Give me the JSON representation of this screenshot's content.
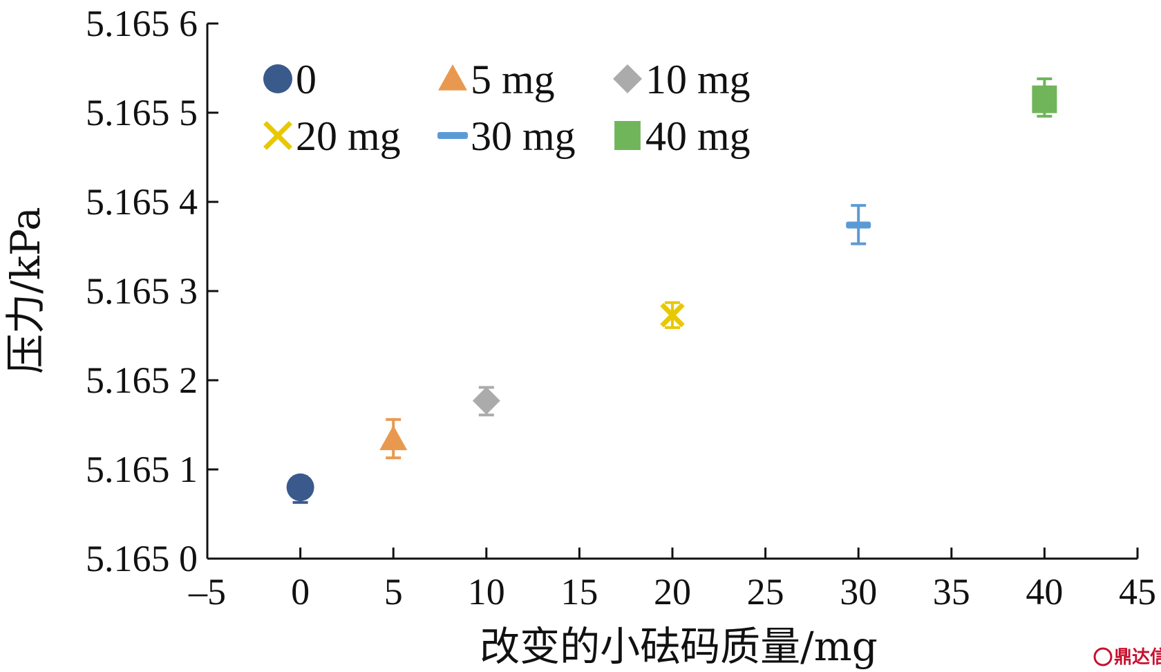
{
  "chart_data": {
    "type": "scatter",
    "xlabel": "改变的小砝码质量/mg",
    "ylabel": "压力/kPa",
    "xlim": [
      -5,
      45
    ],
    "ylim": [
      5.165,
      5.1656
    ],
    "x_ticks": [
      -5,
      0,
      5,
      10,
      15,
      20,
      25,
      30,
      35,
      40,
      45
    ],
    "x_tick_labels": [
      "–5",
      "0",
      "5",
      "10",
      "15",
      "20",
      "25",
      "30",
      "35",
      "40",
      "45"
    ],
    "y_ticks": [
      5.165,
      5.1651,
      5.1652,
      5.1653,
      5.1654,
      5.1655,
      5.1656
    ],
    "y_tick_labels": [
      "5.165 0",
      "5.165 1",
      "5.165 2",
      "5.165 3",
      "5.165 4",
      "5.165 5",
      "5.165 6"
    ],
    "grid": false,
    "legend_position": "top-left",
    "series": [
      {
        "name": "0",
        "marker": "circle",
        "color": "#3a5a8c",
        "x": 0,
        "y": 5.16508,
        "err_low": 5.165063,
        "err_high": 5.165092
      },
      {
        "name": "5 mg",
        "marker": "triangle",
        "color": "#e8994f",
        "x": 5,
        "y": 5.165134,
        "err_low": 5.165113,
        "err_high": 5.165156
      },
      {
        "name": "10 mg",
        "marker": "diamond",
        "color": "#ababab",
        "x": 10,
        "y": 5.165177,
        "err_low": 5.165161,
        "err_high": 5.165192
      },
      {
        "name": "20 mg",
        "marker": "x",
        "color": "#e8c800",
        "x": 20,
        "y": 5.165273,
        "err_low": 5.165259,
        "err_high": 5.165287
      },
      {
        "name": "30 mg",
        "marker": "dash",
        "color": "#5b9bd5",
        "x": 30,
        "y": 5.165374,
        "err_low": 5.165353,
        "err_high": 5.165396
      },
      {
        "name": "40 mg",
        "marker": "square",
        "color": "#70b55a",
        "x": 40,
        "y": 5.165515,
        "err_low": 5.165496,
        "err_high": 5.165538
      }
    ]
  },
  "watermark": "鼎达信"
}
